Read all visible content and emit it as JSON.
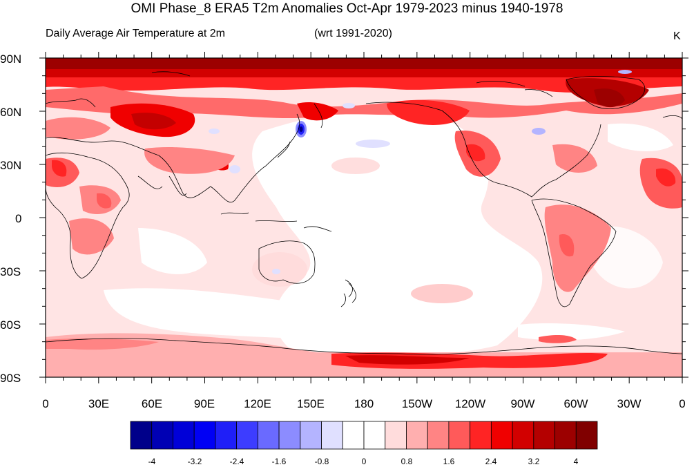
{
  "header": {
    "title": "OMI Phase_8 ERA5 T2m Anomalies Oct-Apr 1979-2023 minus 1940-1978",
    "left_subtitle": "Daily Average Air Temperature at 2m",
    "center_subtitle": "(wrt 1991-2020)",
    "units": "K"
  },
  "map": {
    "projection": "cylindrical-equidistant",
    "center_longitude": 180,
    "lat_labels": [
      "90N",
      "60N",
      "30N",
      "0",
      "30S",
      "60S",
      "90S"
    ],
    "lon_labels": [
      "0",
      "30E",
      "60E",
      "90E",
      "120E",
      "150E",
      "180",
      "150W",
      "120W",
      "90W",
      "60W",
      "30W",
      "0"
    ]
  },
  "colorbar": {
    "colors": [
      "#00008a",
      "#0000b4",
      "#0000d8",
      "#0000f5",
      "#1f1ff8",
      "#3d3dff",
      "#6a6aff",
      "#8c8cff",
      "#b4b4ff",
      "#e0e0ff",
      "#ffffff",
      "#ffffff",
      "#ffdcdc",
      "#ffafaf",
      "#ff8484",
      "#ff5a5a",
      "#ff2424",
      "#f00000",
      "#d20000",
      "#b40000",
      "#9c0000",
      "#800000"
    ],
    "labels": [
      "-4",
      "-3.2",
      "-2.4",
      "-1.6",
      "-0.8",
      "0",
      "0.8",
      "1.6",
      "2.4",
      "3.2",
      "4"
    ]
  }
}
